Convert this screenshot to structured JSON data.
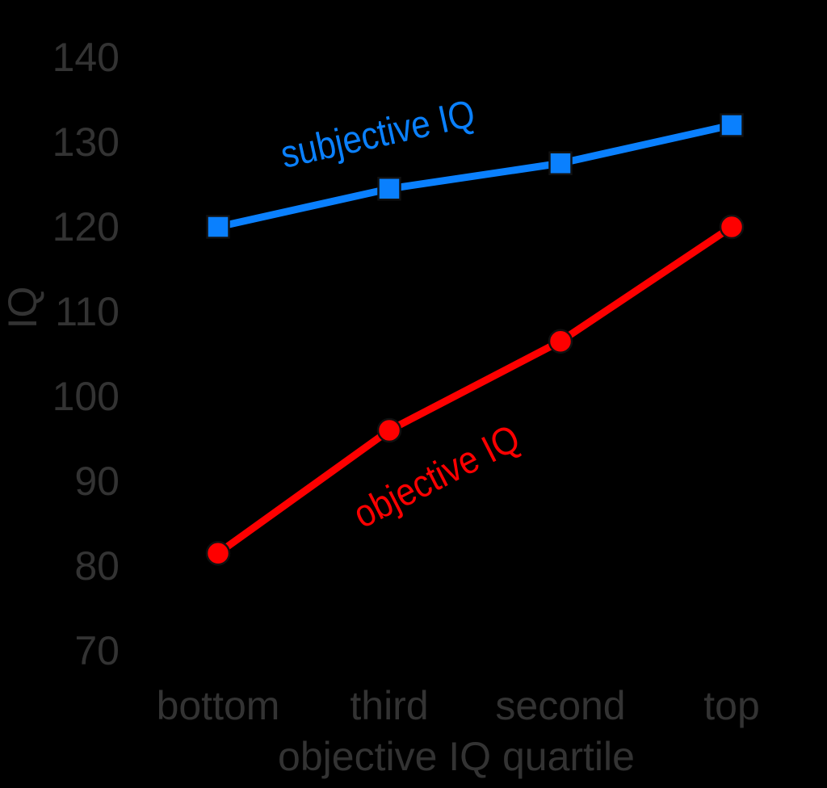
{
  "chart_data": {
    "type": "line",
    "title": "",
    "xlabel": "objective IQ quartile",
    "ylabel": "IQ",
    "categories": [
      "bottom",
      "third",
      "second",
      "top"
    ],
    "yticks": [
      140,
      130,
      120,
      110,
      100,
      90,
      80,
      70
    ],
    "ylim": [
      70,
      140
    ],
    "grid": false,
    "axes_lines": false,
    "legend_position": "inline-rotated-labels",
    "series": [
      {
        "name": "subjective IQ",
        "color": "#0a80fe",
        "marker": "square",
        "values": [
          120,
          124.5,
          127.5,
          132
        ]
      },
      {
        "name": "objective IQ",
        "color": "#fe0000",
        "marker": "circle",
        "values": [
          81.5,
          96,
          106.5,
          120
        ]
      }
    ],
    "colors": {
      "background": "#000000",
      "text": "#333333",
      "marker_outline": "#111111"
    }
  }
}
